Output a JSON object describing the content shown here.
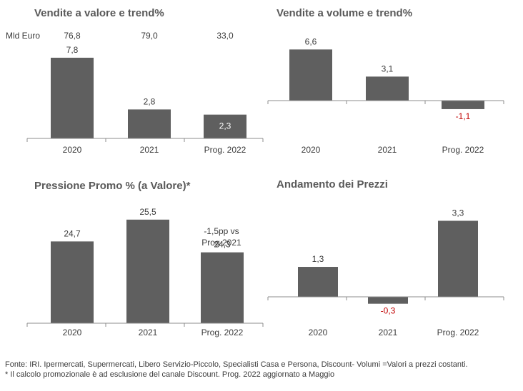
{
  "chart_data": [
    {
      "id": "valore",
      "type": "bar",
      "title": "Vendite a valore e trend%",
      "categories": [
        "2020",
        "2021",
        "Prog. 2022"
      ],
      "values": [
        7.8,
        2.8,
        2.3
      ],
      "value_labels": [
        "7,8",
        "2,8",
        "2,3"
      ],
      "header_unit": "Mld Euro",
      "header_values": [
        "76,8",
        "79,0",
        "33,0"
      ],
      "ylim": [
        0,
        8
      ]
    },
    {
      "id": "volume",
      "type": "bar",
      "title": "Vendite a volume e trend%",
      "categories": [
        "2020",
        "2021",
        "Prog. 2022"
      ],
      "values": [
        6.6,
        3.1,
        -1.1
      ],
      "value_labels": [
        "6,6",
        "3,1",
        "-1,1"
      ],
      "ylim": [
        -1.5,
        7
      ]
    },
    {
      "id": "promo",
      "type": "bar",
      "title": "Pressione Promo % (a Valore)*",
      "categories": [
        "2020",
        "2021",
        "Prog. 2022"
      ],
      "values": [
        24.7,
        25.5,
        24.3
      ],
      "value_labels": [
        "24,7",
        "25,5",
        "24,3"
      ],
      "annotation": [
        "-1,5pp vs",
        "Prog 2021"
      ],
      "ylim": [
        21.7,
        25.6
      ]
    },
    {
      "id": "prezzi",
      "type": "bar",
      "title": "Andamento dei Prezzi",
      "categories": [
        "2020",
        "2021",
        "Prog. 2022"
      ],
      "values": [
        1.3,
        -0.3,
        3.3
      ],
      "value_labels": [
        "1,3",
        "-0,3",
        "3,3"
      ],
      "ylim": [
        -0.5,
        3.5
      ]
    }
  ],
  "colors": {
    "bar": "#5f5f5f",
    "negative_label": "#c00000",
    "axis": "#8c8c8c"
  },
  "footer": {
    "line1": "Fonte: IRI. Ipermercati, Supermercati, Libero Servizio-Piccolo, Specialisti Casa e Persona, Discount- Volumi =Valori a prezzi costanti.",
    "line2": "* Il calcolo promozionale è ad esclusione del canale Discount. Prog. 2022 aggiornato a Maggio"
  }
}
